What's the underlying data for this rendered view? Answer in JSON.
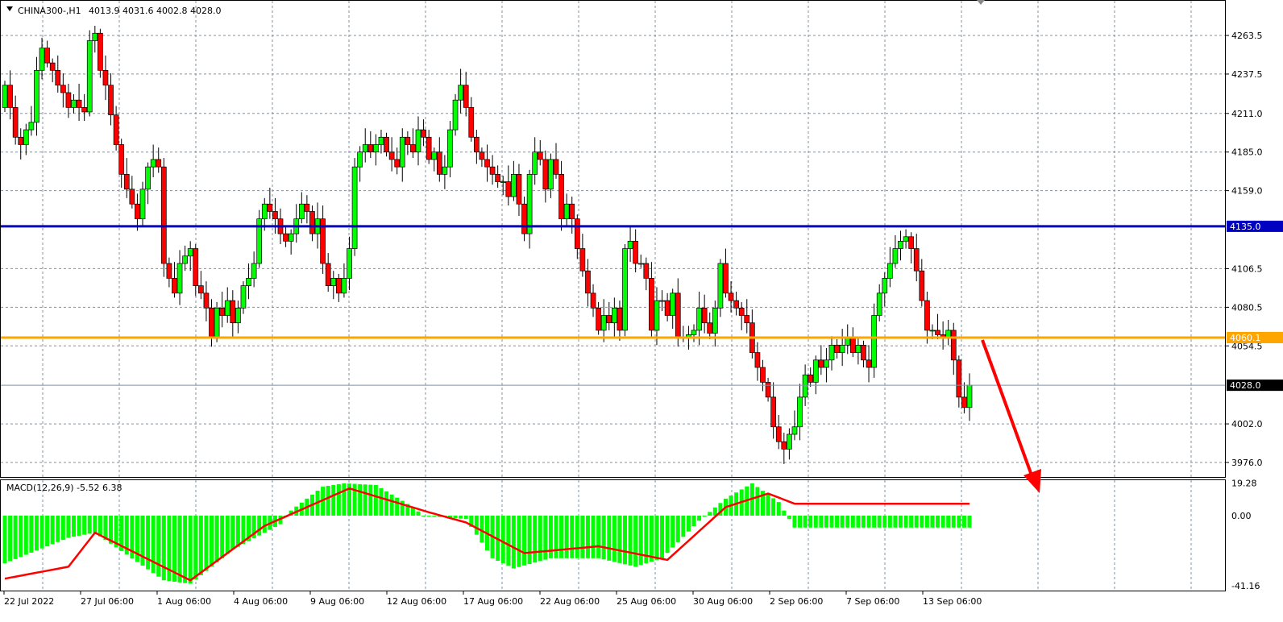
{
  "header": {
    "symbol": "CHINA300-,H1",
    "ohlc": "4013.9 4031.6 4002.8 4028.0"
  },
  "macd_label": "MACD(12,26,9) -5.52 6.38",
  "colors": {
    "bull": "#00ff00",
    "bear": "#ff0000",
    "support": "#ffa500",
    "resistance": "#0000c0",
    "macd_hist": "#00ff00",
    "signal": "#ff0000",
    "arrow": "#ff0000"
  },
  "chart_data": [
    {
      "type": "candlestick",
      "ylim": [
        3965,
        4275
      ],
      "y_ticks": [
        "4263.5",
        "4237.5",
        "4211.0",
        "4185.0",
        "4159.0",
        "4106.5",
        "4080.5",
        "4054.5",
        "4002.0",
        "3976.0"
      ],
      "x_ticks": [
        "22 Jul 2022",
        "27 Jul 06:00",
        "1 Aug 06:00",
        "4 Aug 06:00",
        "9 Aug 06:00",
        "12 Aug 06:00",
        "17 Aug 06:00",
        "22 Aug 06:00",
        "25 Aug 06:00",
        "30 Aug 06:00",
        "2 Sep 06:00",
        "7 Sep 06:00",
        "13 Sep 06:00"
      ],
      "first_open": 4215,
      "closes": [
        4230,
        4215,
        4195,
        4190,
        4200,
        4205,
        4240,
        4255,
        4245,
        4240,
        4230,
        4225,
        4215,
        4220,
        4215,
        4212,
        4260,
        4265,
        4240,
        4230,
        4210,
        4190,
        4170,
        4160,
        4150,
        4140,
        4160,
        4175,
        4180,
        4175,
        4110,
        4100,
        4090,
        4110,
        4115,
        4120,
        4095,
        4090,
        4080,
        4060,
        4080,
        4075,
        4085,
        4070,
        4080,
        4095,
        4100,
        4110,
        4140,
        4150,
        4145,
        4140,
        4130,
        4125,
        4130,
        4140,
        4150,
        4145,
        4130,
        4140,
        4110,
        4095,
        4100,
        4090,
        4100,
        4120,
        4175,
        4185,
        4190,
        4185,
        4190,
        4195,
        4185,
        4180,
        4175,
        4195,
        4190,
        4185,
        4200,
        4195,
        4180,
        4185,
        4170,
        4175,
        4200,
        4220,
        4230,
        4215,
        4195,
        4185,
        4180,
        4175,
        4170,
        4165,
        4165,
        4155,
        4170,
        4150,
        4130,
        4170,
        4185,
        4180,
        4160,
        4180,
        4170,
        4140,
        4150,
        4140,
        4120,
        4105,
        4090,
        4080,
        4065,
        4075,
        4070,
        4080,
        4065,
        4120,
        4125,
        4110,
        4110,
        4100,
        4065,
        4085,
        4085,
        4075,
        4090,
        4060,
        4060,
        4062,
        4065,
        4080,
        4070,
        4063,
        4080,
        4110,
        4090,
        4085,
        4080,
        4075,
        4070,
        4050,
        4040,
        4030,
        4020,
        4000,
        3990,
        3985,
        3995,
        4000,
        4020,
        4035,
        4030,
        4045,
        4040,
        4045,
        4055,
        4050,
        4055,
        4060,
        4050,
        4055,
        4045,
        4040,
        4075,
        4090,
        4100,
        4110,
        4120,
        4125,
        4128,
        4120,
        4105,
        4085,
        4065,
        4065,
        4062,
        4060,
        4065,
        4045,
        4020,
        4013,
        4028
      ],
      "current_price": "4028.0",
      "horizontal_lines": [
        {
          "price": 4135.0,
          "label": "4135.0",
          "color": "#0000c0"
        },
        {
          "price": 4060.1,
          "label": "4060.1",
          "color": "#ffa500"
        }
      ]
    },
    {
      "type": "bar+line",
      "name": "MACD(12,26,9)",
      "ylim": [
        -41.16,
        19.28
      ],
      "y_ticks": [
        "19.28",
        "0.00",
        "-41.16"
      ],
      "histogram_keypoints": [
        [
          0,
          -28
        ],
        [
          12,
          -13
        ],
        [
          17,
          -10
        ],
        [
          30,
          -38
        ],
        [
          35,
          -40
        ],
        [
          43,
          -20
        ],
        [
          52,
          -5
        ],
        [
          54,
          3
        ],
        [
          60,
          17
        ],
        [
          64,
          19
        ],
        [
          70,
          18
        ],
        [
          77,
          5
        ],
        [
          79,
          0
        ],
        [
          87,
          -2
        ],
        [
          92,
          -25
        ],
        [
          96,
          -31
        ],
        [
          103,
          -25
        ],
        [
          112,
          -25
        ],
        [
          119,
          -30
        ],
        [
          124,
          -25
        ],
        [
          131,
          -3
        ],
        [
          136,
          10
        ],
        [
          141,
          19
        ],
        [
          146,
          8
        ],
        [
          149,
          -7
        ]
      ],
      "signal_keypoints": [
        [
          0,
          -37
        ],
        [
          12,
          -30
        ],
        [
          17,
          -10
        ],
        [
          35,
          -38
        ],
        [
          49,
          -6
        ],
        [
          65,
          16
        ],
        [
          80,
          2
        ],
        [
          87,
          -4
        ],
        [
          98,
          -22
        ],
        [
          112,
          -18
        ],
        [
          125,
          -26
        ],
        [
          136,
          5
        ],
        [
          144,
          13
        ],
        [
          149,
          7
        ]
      ]
    }
  ]
}
